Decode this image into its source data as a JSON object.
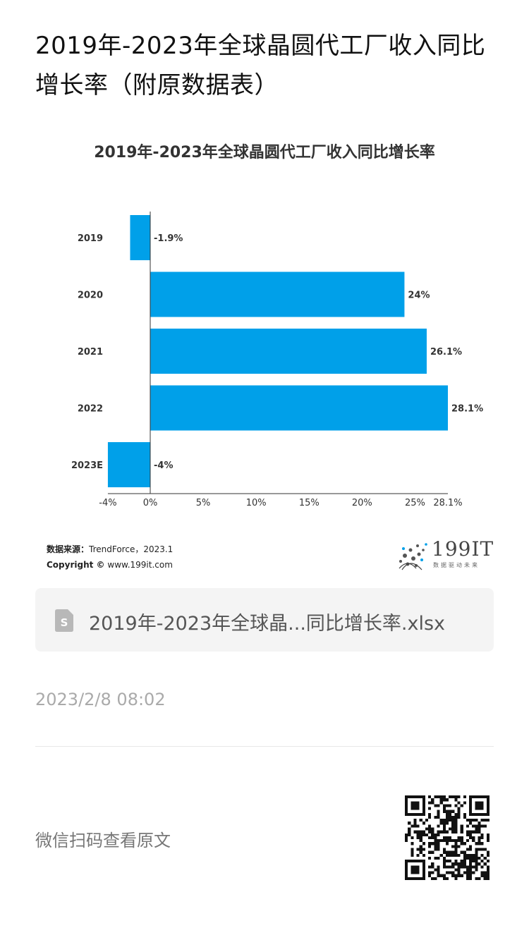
{
  "article": {
    "title": "2019年-2023年全球晶圆代工厂收入同比增长率（附原数据表）"
  },
  "chart_data": {
    "type": "bar",
    "orientation": "horizontal",
    "title": "2019年-2023年全球晶圆代工厂收入同比增长率",
    "categories": [
      "2019",
      "2020",
      "2021",
      "2022",
      "2023E"
    ],
    "values": [
      -1.9,
      24,
      26.1,
      28.1,
      -4
    ],
    "data_labels": [
      "-1.9%",
      "24%",
      "26.1%",
      "28.1%",
      "-4%"
    ],
    "xticks": [
      "-4%",
      "0%",
      "5%",
      "10%",
      "15%",
      "20%",
      "25%",
      "28.1%"
    ],
    "xtick_values": [
      -4,
      0,
      5,
      10,
      15,
      20,
      25,
      28.1
    ],
    "xlim": [
      -4,
      28.1
    ],
    "bar_color": "#00a0e9",
    "grid": false,
    "legend": "none"
  },
  "source": {
    "label": "数据来源：",
    "text": "TrendForce，2023.1",
    "copyright_label": "Copyright ©",
    "copyright_text": "www.199it.com"
  },
  "logo": {
    "name": "199IT",
    "sub": "数据驱动未来"
  },
  "attachment": {
    "icon": "spreadsheet-file-icon",
    "name": "2019年-2023年全球晶...同比增长率.xlsx"
  },
  "meta": {
    "timestamp": "2023/2/8 08:02"
  },
  "footer": {
    "qr_prompt": "微信扫码查看原文",
    "qr_icon": "qr-code"
  }
}
